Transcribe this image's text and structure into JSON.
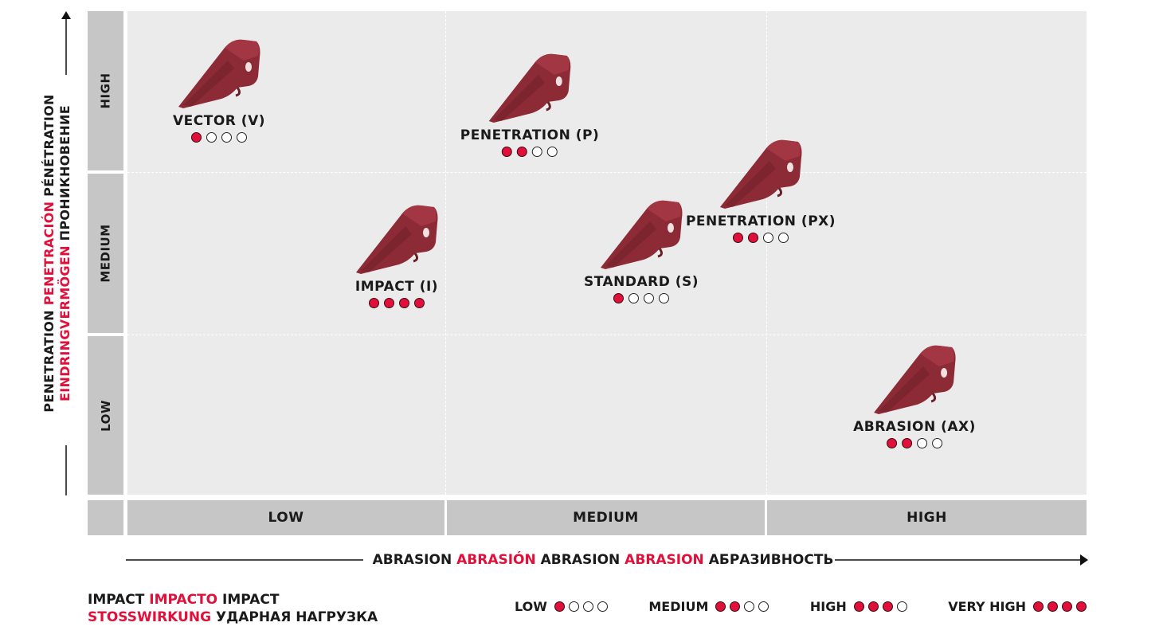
{
  "y_axis": {
    "line1": {
      "a": "PENETRATION",
      "b": "PENETRACIÓN",
      "c": "PÉNÉTRATION"
    },
    "line2": {
      "a": "EINDRINGVERMÖGEN",
      "b": "ПРОНИКНОВЕНИЕ"
    }
  },
  "x_axis": {
    "a": "ABRASION",
    "b": "ABRASIÓN",
    "c": "ABRASION",
    "d": "ABRASION",
    "e": "АБРАЗИВНОСТЬ"
  },
  "rows": [
    "HIGH",
    "MEDIUM",
    "LOW"
  ],
  "columns": [
    "LOW",
    "MEDIUM",
    "HIGH"
  ],
  "teeth": [
    {
      "name": "VECTOR (V)",
      "impact": 1
    },
    {
      "name": "PENETRATION (P)",
      "impact": 2
    },
    {
      "name": "IMPACT (I)",
      "impact": 4
    },
    {
      "name": "STANDARD (S)",
      "impact": 1
    },
    {
      "name": "PENETRATION (PX)",
      "impact": 2
    },
    {
      "name": "ABRASION (AX)",
      "impact": 2
    }
  ],
  "impact_legend": {
    "a": "IMPACT",
    "b": "IMPACTO",
    "c": "IMPACT",
    "d": "STOSSWIRKUNG",
    "e": "УДАРНАЯ НАГРУЗКА"
  },
  "levels": [
    {
      "label": "LOW",
      "filled": 1
    },
    {
      "label": "MEDIUM",
      "filled": 2
    },
    {
      "label": "HIGH",
      "filled": 3
    },
    {
      "label": "VERY HIGH",
      "filled": 4
    }
  ],
  "colors": {
    "accent": "#e0103a",
    "tooth": "#8c2a35",
    "grid_bg": "#ebebeb",
    "label_bg": "#c6c6c6"
  }
}
